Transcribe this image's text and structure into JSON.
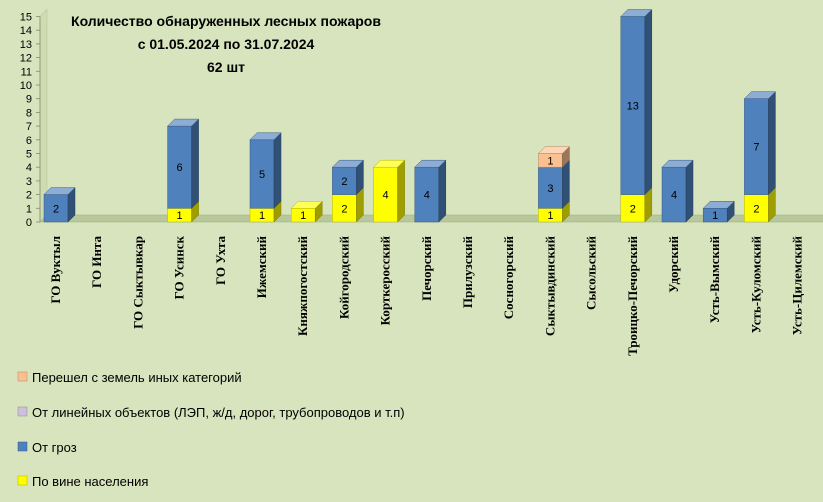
{
  "chart_data": {
    "type": "bar",
    "stacked": true,
    "title_lines": [
      "Количество обнаруженных лесных пожаров",
      "с 01.05.2024  по  31.07.2024",
      "62 шт"
    ],
    "xlabel": "",
    "ylabel": "",
    "ylim": [
      0,
      15
    ],
    "yticks": [
      0,
      1,
      2,
      3,
      4,
      5,
      6,
      7,
      8,
      9,
      10,
      11,
      12,
      13,
      14,
      15
    ],
    "grid": false,
    "legend_position": "bottom-left",
    "categories": [
      "ГО Вуктыл",
      "ГО Инта",
      "ГО Сыктывкар",
      "ГО Усинск",
      "ГО Ухта",
      "Ижемский",
      "Княжпогостский",
      "Койгородский",
      "Корткеросский",
      "Печорский",
      "Прилузский",
      "Сосногорский",
      "Сыктывдинский",
      "Сысольский",
      "Троицко-Печорский",
      "Удорский",
      "Усть-Вымский",
      "Усть-Куломский",
      "Усть-Цилемский"
    ],
    "series": [
      {
        "name": "По вине населения",
        "color": "#ffff00",
        "values": [
          0,
          0,
          0,
          1,
          0,
          1,
          1,
          2,
          4,
          0,
          0,
          0,
          1,
          0,
          2,
          0,
          0,
          2,
          0
        ]
      },
      {
        "name": "От гроз",
        "color": "#4f81bd",
        "values": [
          2,
          0,
          0,
          6,
          0,
          5,
          0,
          2,
          0,
          4,
          0,
          0,
          3,
          0,
          13,
          4,
          1,
          7,
          0
        ]
      },
      {
        "name": "От линейных объектов (ЛЭП, ж/д, дорог,  трубопроводов  и т.п)",
        "color": "#ccc1da",
        "values": [
          0,
          0,
          0,
          0,
          0,
          0,
          0,
          0,
          0,
          0,
          0,
          0,
          0,
          0,
          0,
          0,
          0,
          0,
          0
        ]
      },
      {
        "name": "Перешел с земель иных категорий",
        "color": "#fac090",
        "values": [
          0,
          0,
          0,
          0,
          0,
          0,
          0,
          0,
          0,
          0,
          0,
          0,
          1,
          0,
          0,
          0,
          0,
          0,
          0
        ]
      }
    ],
    "legend_order": [
      3,
      2,
      1,
      0
    ]
  }
}
